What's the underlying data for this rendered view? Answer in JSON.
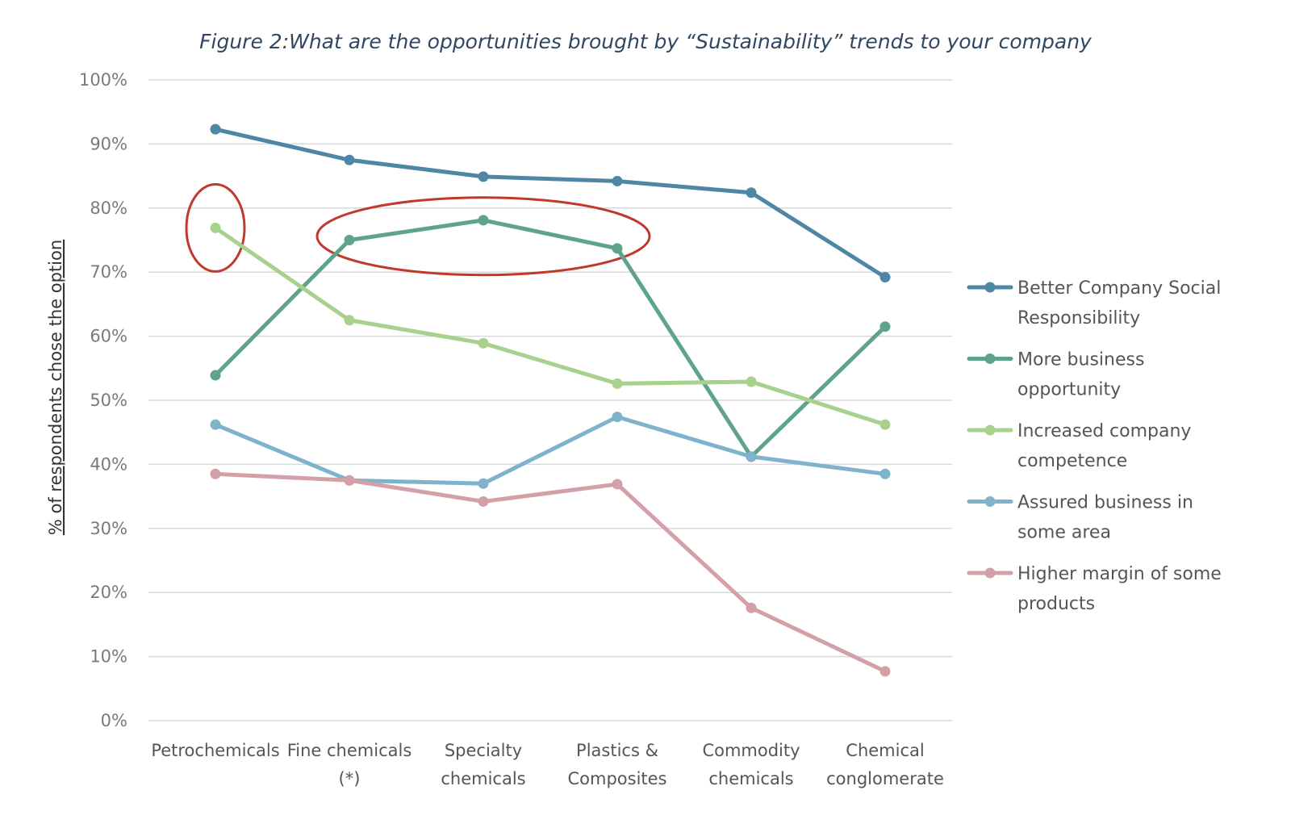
{
  "chart_data": {
    "type": "line",
    "title": "Figure 2:What are the opportunities brought by “Sustainability” trends to your company",
    "ylabel": "% of respondents chose the option",
    "xlabel": "",
    "ylim": [
      0,
      100
    ],
    "y_ticks": [
      "0%",
      "10%",
      "20%",
      "30%",
      "40%",
      "50%",
      "60%",
      "70%",
      "80%",
      "90%",
      "100%"
    ],
    "categories": [
      [
        "Petrochemicals"
      ],
      [
        "Fine chemicals",
        "(*)"
      ],
      [
        "Specialty",
        "chemicals"
      ],
      [
        "Plastics &",
        "Composites"
      ],
      [
        "Commodity",
        "chemicals"
      ],
      [
        "Chemical",
        "conglomerate"
      ]
    ],
    "grid": true,
    "legend_position": "right",
    "series": [
      {
        "name": [
          "Better Company Social",
          "Responsibility"
        ],
        "color": "#4f86a6",
        "values": [
          92.3,
          87.5,
          84.9,
          84.2,
          82.4,
          69.2
        ]
      },
      {
        "name": [
          "More business",
          "opportunity"
        ],
        "color": "#5fa38a",
        "values": [
          53.9,
          75.0,
          78.1,
          73.7,
          41.2,
          61.5
        ]
      },
      {
        "name": [
          "Increased company",
          "competence"
        ],
        "color": "#a9d18e",
        "values": [
          76.9,
          62.5,
          58.9,
          52.6,
          52.9,
          46.2
        ]
      },
      {
        "name": [
          "Assured business in",
          "some area"
        ],
        "color": "#7fb3cc",
        "values": [
          46.2,
          37.5,
          37.0,
          47.4,
          41.2,
          38.5
        ]
      },
      {
        "name": [
          "Higher margin of some",
          "products"
        ],
        "color": "#d4a0a8",
        "values": [
          38.5,
          37.5,
          34.2,
          36.9,
          17.6,
          7.7
        ]
      }
    ],
    "annotations": [
      {
        "type": "ellipse",
        "color": "#c0392b",
        "around": "More business opportunity, Fine chemicals to Plastics & Composites"
      },
      {
        "type": "ellipse",
        "color": "#c0392b",
        "around": "Increased company competence, Petrochemicals"
      }
    ]
  }
}
